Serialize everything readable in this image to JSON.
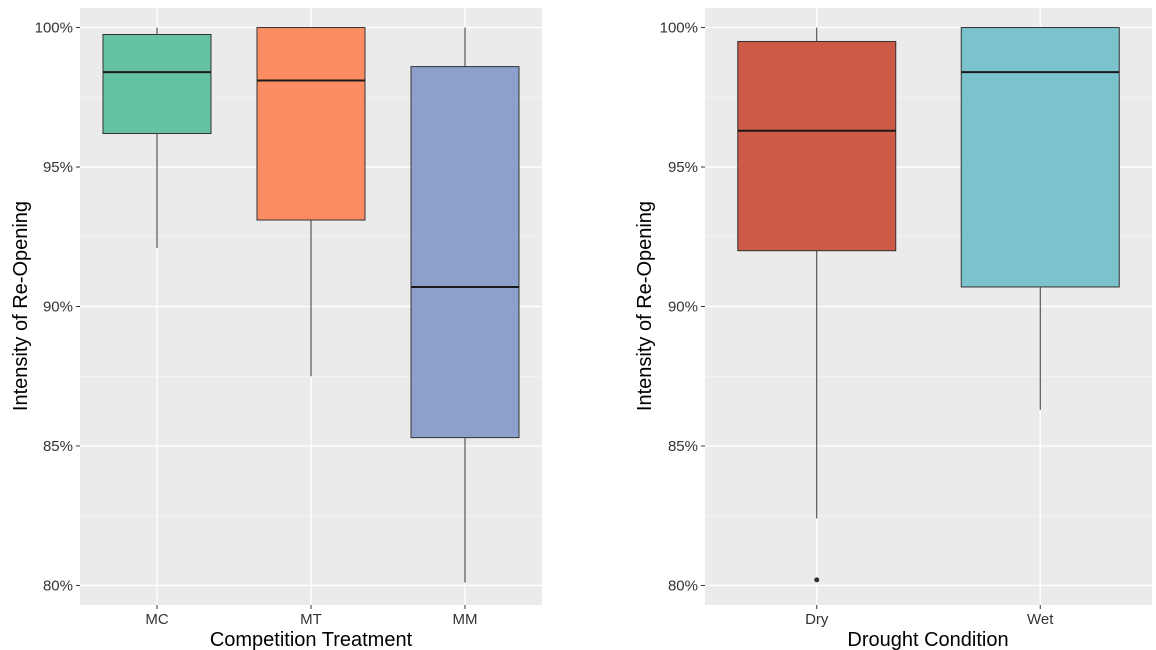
{
  "chart_data": [
    {
      "type": "boxplot",
      "xlabel": "Competition Treatment",
      "ylabel": "Intensity of Re-Opening",
      "ylim": [
        0.793,
        1.007
      ],
      "yticks": [
        0.8,
        0.85,
        0.9,
        0.95,
        1.0
      ],
      "ytick_labels": [
        "80%",
        "85%",
        "90%",
        "95%",
        "100%"
      ],
      "grid": true,
      "legend": "none",
      "categories": [
        "MC",
        "MT",
        "MM"
      ],
      "boxes": [
        {
          "category": "MC",
          "whisker_low": 0.921,
          "q1": 0.962,
          "median": 0.984,
          "q3": 0.9975,
          "whisker_high": 1.0,
          "outliers": [],
          "color": "#66c2a5"
        },
        {
          "category": "MT",
          "whisker_low": 0.875,
          "q1": 0.931,
          "median": 0.981,
          "q3": 1.0,
          "whisker_high": 1.0,
          "outliers": [],
          "color": "#fc8d62"
        },
        {
          "category": "MM",
          "whisker_low": 0.801,
          "q1": 0.853,
          "median": 0.907,
          "q3": 0.986,
          "whisker_high": 1.0,
          "outliers": [],
          "color": "#8da0cb"
        }
      ]
    },
    {
      "type": "boxplot",
      "xlabel": "Drought Condition",
      "ylabel": "Intensity of Re-Opening",
      "ylim": [
        0.793,
        1.007
      ],
      "yticks": [
        0.8,
        0.85,
        0.9,
        0.95,
        1.0
      ],
      "ytick_labels": [
        "80%",
        "85%",
        "90%",
        "95%",
        "100%"
      ],
      "grid": true,
      "legend": "none",
      "categories": [
        "Dry",
        "Wet"
      ],
      "boxes": [
        {
          "category": "Dry",
          "whisker_low": 0.824,
          "q1": 0.92,
          "median": 0.963,
          "q3": 0.995,
          "whisker_high": 1.0,
          "outliers": [
            0.802
          ],
          "color": "#cc5a46"
        },
        {
          "category": "Wet",
          "whisker_low": 0.863,
          "q1": 0.907,
          "median": 0.984,
          "q3": 1.0,
          "whisker_high": 1.0,
          "outliers": [],
          "color": "#7bc3cc"
        }
      ]
    }
  ]
}
